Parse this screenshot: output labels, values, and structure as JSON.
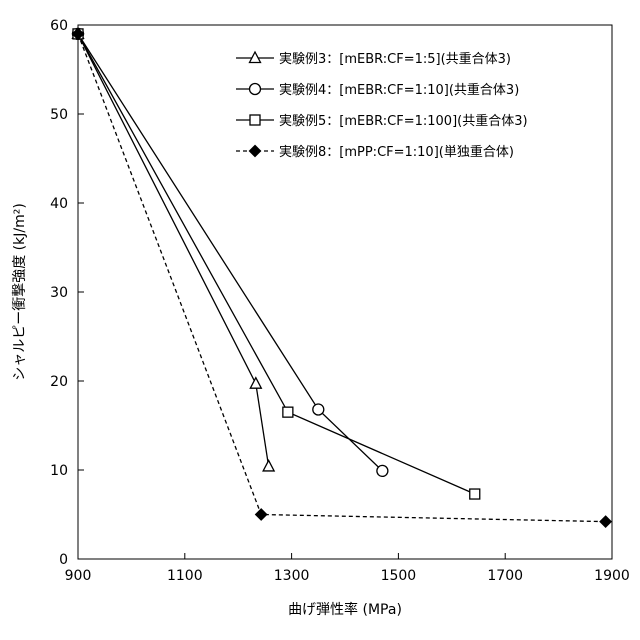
{
  "chart_data": {
    "type": "line",
    "title": "",
    "xlabel": "曲げ弾性率 (MPa)",
    "ylabel": "シャルピー衝撃強度 (kJ/m²)",
    "xlim": [
      900,
      1900
    ],
    "ylim": [
      0,
      60
    ],
    "xticks": [
      900,
      1100,
      1300,
      1500,
      1700,
      1900
    ],
    "yticks": [
      0,
      10,
      20,
      30,
      40,
      50,
      60
    ],
    "grid": false,
    "legend_position": "top-right",
    "series": [
      {
        "name": "実験例3：[mEBR:CF=1:5](共重合体3)",
        "marker": "triangle-open",
        "line": "solid",
        "points": [
          [
            900,
            59
          ],
          [
            1233,
            19.7
          ],
          [
            1257,
            10.4
          ]
        ]
      },
      {
        "name": "実験例4：[mEBR:CF=1:10](共重合体3)",
        "marker": "circle-open",
        "line": "solid",
        "points": [
          [
            900,
            59
          ],
          [
            1350,
            16.8
          ],
          [
            1470,
            9.9
          ]
        ]
      },
      {
        "name": "実験例5：[mEBR:CF=1:100](共重合体3)",
        "marker": "square-open",
        "line": "solid",
        "points": [
          [
            900,
            59
          ],
          [
            1293,
            16.5
          ],
          [
            1643,
            7.3
          ]
        ]
      },
      {
        "name": "実験例8：[mPP:CF=1:10](単独重合体)",
        "marker": "diamond-filled",
        "line": "dashed",
        "points": [
          [
            900,
            59
          ],
          [
            1243,
            5.0
          ],
          [
            1888,
            4.2
          ]
        ]
      }
    ]
  }
}
